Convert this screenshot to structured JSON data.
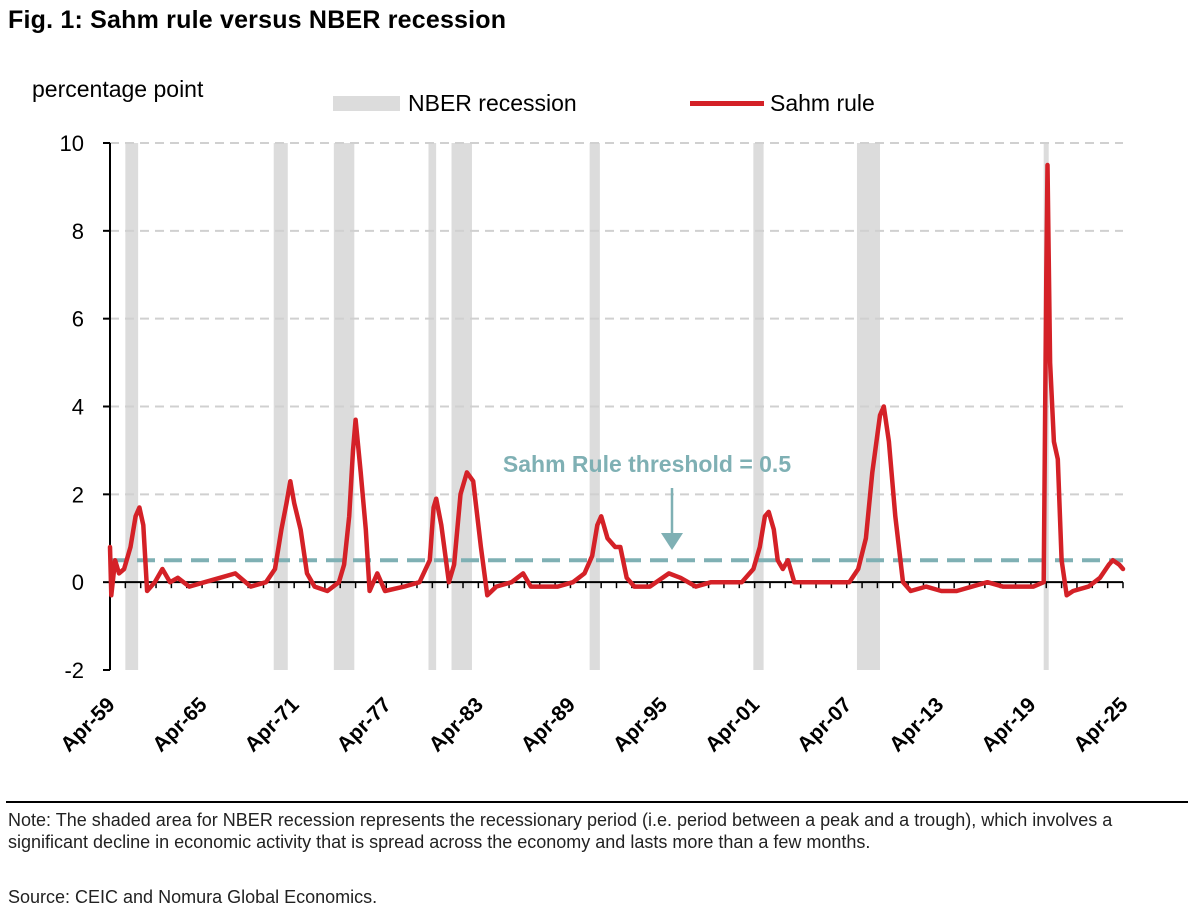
{
  "header": {
    "title": "Fig. 1: Sahm rule versus NBER recession",
    "unit_label": "percentage point"
  },
  "legend": {
    "recession_label": "NBER recession",
    "sahm_label": "Sahm rule"
  },
  "colors": {
    "sahm_line": "#d42127",
    "recession_shade": "#dcdcdc",
    "threshold": "#7fb0b4",
    "gridline": "#d0d0d0"
  },
  "annotation": {
    "text": "Sahm Rule threshold = 0.5"
  },
  "footer": {
    "note": "Note: The shaded area for NBER recession represents the recessionary period (i.e. period between a peak and a trough), which involves a significant decline in economic activity that is spread across the economy and lasts more than a few months.",
    "source": "Source: CEIC and Nomura Global Economics."
  },
  "chart_data": {
    "type": "line",
    "title": "Fig. 1: Sahm rule versus NBER recession",
    "ylabel": "percentage point",
    "xlabel": "",
    "xlim": [
      "1959-04",
      "2025-04"
    ],
    "ylim": [
      -2,
      10
    ],
    "y_ticks": [
      -2,
      0,
      2,
      4,
      6,
      8,
      10
    ],
    "x_tick_labels": [
      "Apr-59",
      "Apr-65",
      "Apr-71",
      "Apr-77",
      "Apr-83",
      "Apr-89",
      "Apr-95",
      "Apr-01",
      "Apr-07",
      "Apr-13",
      "Apr-19",
      "Apr-25"
    ],
    "grid": "horizontal dashed",
    "legend_position": "top",
    "threshold": 0.5,
    "recessions": [
      [
        "1960-04",
        "1961-02"
      ],
      [
        "1969-12",
        "1970-11"
      ],
      [
        "1973-11",
        "1975-03"
      ],
      [
        "1980-01",
        "1980-07"
      ],
      [
        "1981-07",
        "1982-11"
      ],
      [
        "1990-07",
        "1991-03"
      ],
      [
        "2001-03",
        "2001-11"
      ],
      [
        "2007-12",
        "2009-06"
      ],
      [
        "2020-02",
        "2020-04"
      ]
    ],
    "series": [
      {
        "name": "Sahm rule",
        "points": [
          [
            "1959-04",
            0.8
          ],
          [
            "1959-05",
            -0.3
          ],
          [
            "1959-08",
            0.5
          ],
          [
            "1959-11",
            0.2
          ],
          [
            "1960-03",
            0.3
          ],
          [
            "1960-08",
            0.8
          ],
          [
            "1960-12",
            1.5
          ],
          [
            "1961-03",
            1.7
          ],
          [
            "1961-06",
            1.3
          ],
          [
            "1961-09",
            -0.2
          ],
          [
            "1962-03",
            0.0
          ],
          [
            "1962-09",
            0.3
          ],
          [
            "1963-03",
            0.0
          ],
          [
            "1963-09",
            0.1
          ],
          [
            "1964-06",
            -0.1
          ],
          [
            "1965-06",
            0.0
          ],
          [
            "1966-06",
            0.1
          ],
          [
            "1967-06",
            0.2
          ],
          [
            "1968-06",
            -0.1
          ],
          [
            "1969-06",
            0.0
          ],
          [
            "1970-01",
            0.3
          ],
          [
            "1970-06",
            1.2
          ],
          [
            "1970-10",
            1.8
          ],
          [
            "1971-01",
            2.3
          ],
          [
            "1971-04",
            1.8
          ],
          [
            "1971-09",
            1.2
          ],
          [
            "1972-02",
            0.2
          ],
          [
            "1972-08",
            -0.1
          ],
          [
            "1973-06",
            -0.2
          ],
          [
            "1974-03",
            0.0
          ],
          [
            "1974-07",
            0.4
          ],
          [
            "1974-11",
            1.5
          ],
          [
            "1975-02",
            3.0
          ],
          [
            "1975-04",
            3.7
          ],
          [
            "1975-08",
            2.5
          ],
          [
            "1975-12",
            1.2
          ],
          [
            "1976-03",
            -0.2
          ],
          [
            "1976-09",
            0.2
          ],
          [
            "1977-03",
            -0.2
          ],
          [
            "1978-06",
            -0.1
          ],
          [
            "1979-06",
            0.0
          ],
          [
            "1980-02",
            0.5
          ],
          [
            "1980-05",
            1.7
          ],
          [
            "1980-07",
            1.9
          ],
          [
            "1980-11",
            1.3
          ],
          [
            "1981-05",
            0.0
          ],
          [
            "1981-09",
            0.4
          ],
          [
            "1982-02",
            2.0
          ],
          [
            "1982-07",
            2.5
          ],
          [
            "1982-12",
            2.3
          ],
          [
            "1983-06",
            0.8
          ],
          [
            "1983-11",
            -0.3
          ],
          [
            "1984-06",
            -0.1
          ],
          [
            "1985-06",
            0.0
          ],
          [
            "1986-03",
            0.2
          ],
          [
            "1986-09",
            -0.1
          ],
          [
            "1988-06",
            -0.1
          ],
          [
            "1989-06",
            0.0
          ],
          [
            "1990-03",
            0.2
          ],
          [
            "1990-09",
            0.6
          ],
          [
            "1991-01",
            1.3
          ],
          [
            "1991-04",
            1.5
          ],
          [
            "1991-09",
            1.0
          ],
          [
            "1992-03",
            0.8
          ],
          [
            "1992-07",
            0.8
          ],
          [
            "1992-12",
            0.1
          ],
          [
            "1993-06",
            -0.1
          ],
          [
            "1994-06",
            -0.1
          ],
          [
            "1995-09",
            0.2
          ],
          [
            "1996-06",
            0.1
          ],
          [
            "1997-06",
            -0.1
          ],
          [
            "1998-06",
            0.0
          ],
          [
            "2000-06",
            0.0
          ],
          [
            "2001-03",
            0.3
          ],
          [
            "2001-08",
            0.8
          ],
          [
            "2001-12",
            1.5
          ],
          [
            "2002-03",
            1.6
          ],
          [
            "2002-07",
            1.2
          ],
          [
            "2002-10",
            0.5
          ],
          [
            "2003-02",
            0.3
          ],
          [
            "2003-06",
            0.5
          ],
          [
            "2003-11",
            0.0
          ],
          [
            "2005-06",
            0.0
          ],
          [
            "2007-06",
            0.0
          ],
          [
            "2008-01",
            0.3
          ],
          [
            "2008-07",
            1.0
          ],
          [
            "2008-12",
            2.5
          ],
          [
            "2009-06",
            3.8
          ],
          [
            "2009-09",
            4.0
          ],
          [
            "2010-01",
            3.2
          ],
          [
            "2010-06",
            1.5
          ],
          [
            "2010-12",
            0.0
          ],
          [
            "2011-06",
            -0.2
          ],
          [
            "2012-06",
            -0.1
          ],
          [
            "2013-06",
            -0.2
          ],
          [
            "2014-06",
            -0.2
          ],
          [
            "2015-06",
            -0.1
          ],
          [
            "2016-06",
            0.0
          ],
          [
            "2017-06",
            -0.1
          ],
          [
            "2018-06",
            -0.1
          ],
          [
            "2019-06",
            -0.1
          ],
          [
            "2020-02",
            0.0
          ],
          [
            "2020-04",
            7.0
          ],
          [
            "2020-05",
            9.5
          ],
          [
            "2020-07",
            5.0
          ],
          [
            "2020-10",
            3.2
          ],
          [
            "2021-01",
            2.8
          ],
          [
            "2021-04",
            0.5
          ],
          [
            "2021-08",
            -0.3
          ],
          [
            "2022-01",
            -0.2
          ],
          [
            "2023-01",
            -0.1
          ],
          [
            "2023-10",
            0.1
          ],
          [
            "2024-05",
            0.4
          ],
          [
            "2024-08",
            0.5
          ],
          [
            "2025-01",
            0.4
          ],
          [
            "2025-04",
            0.3
          ]
        ]
      }
    ]
  }
}
